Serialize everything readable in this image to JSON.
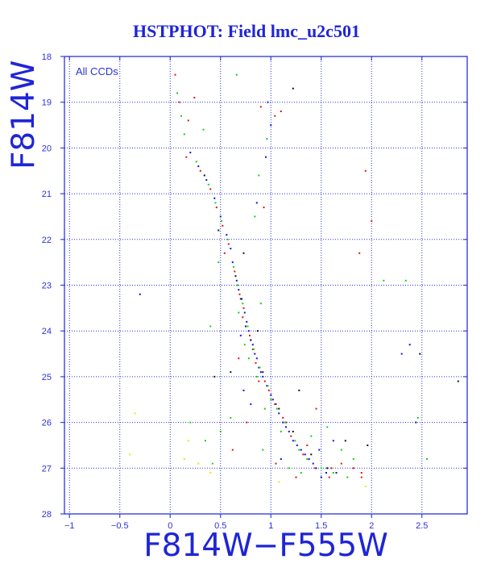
{
  "chart_data": {
    "type": "scatter",
    "title": "HSTPHOT: Field lmc_u2c501",
    "xlabel": "F814W−F555W",
    "ylabel": "F814W",
    "annotation": "All CCDs",
    "xlim": [
      -1.05,
      2.95
    ],
    "ylim": [
      28,
      18
    ],
    "y_inverted": true,
    "grid": true,
    "x_ticks": [
      -1,
      -0.5,
      0,
      0.5,
      1,
      1.5,
      2,
      2.5
    ],
    "x_tick_labels": [
      "−1",
      "−0.5",
      "0",
      "0.5",
      "1",
      "1.5",
      "2",
      "2.5"
    ],
    "y_ticks": [
      18,
      19,
      20,
      21,
      22,
      23,
      24,
      25,
      26,
      27,
      28
    ],
    "y_tick_labels": [
      "18",
      "19",
      "20",
      "21",
      "22",
      "23",
      "24",
      "25",
      "26",
      "27",
      "28"
    ],
    "colors": {
      "axis": "#2b32d8",
      "title": "#1f25d6",
      "background": "#ffffff"
    },
    "series_colors": [
      "#1111e0",
      "#e01111",
      "#11d011",
      "#111111",
      "#e8e800"
    ],
    "series": [
      {
        "color": "#1111e0",
        "points": [
          [
            0.62,
            22.5
          ],
          [
            0.66,
            22.9
          ],
          [
            0.7,
            23.3
          ],
          [
            0.74,
            23.6
          ],
          [
            0.78,
            24.0
          ],
          [
            0.82,
            24.3
          ],
          [
            0.86,
            24.6
          ],
          [
            0.9,
            24.9
          ],
          [
            0.96,
            25.2
          ],
          [
            1.02,
            25.5
          ],
          [
            1.08,
            25.8
          ],
          [
            1.15,
            26.1
          ],
          [
            1.22,
            26.4
          ],
          [
            1.3,
            26.6
          ],
          [
            1.38,
            26.8
          ],
          [
            1.45,
            27.0
          ],
          [
            1.55,
            27.1
          ],
          [
            1.65,
            27.1
          ],
          [
            0.6,
            22.2
          ],
          [
            0.68,
            23.1
          ],
          [
            0.76,
            23.8
          ],
          [
            0.84,
            24.5
          ],
          [
            0.92,
            25.0
          ],
          [
            1.0,
            25.4
          ],
          [
            1.12,
            26.0
          ],
          [
            1.26,
            26.5
          ],
          [
            1.42,
            26.9
          ],
          [
            1.5,
            27.2
          ],
          [
            0.56,
            21.9
          ],
          [
            0.5,
            21.5
          ],
          [
            0.44,
            21.1
          ],
          [
            0.36,
            20.7
          ],
          [
            0.28,
            20.4
          ],
          [
            0.2,
            20.1
          ],
          [
            0.86,
            21.2
          ],
          [
            0.95,
            20.2
          ],
          [
            1.0,
            19.5
          ],
          [
            0.97,
            19.0
          ],
          [
            0.73,
            25.3
          ],
          [
            0.8,
            25.6
          ],
          [
            1.62,
            26.4
          ],
          [
            1.1,
            26.8
          ],
          [
            2.38,
            24.3
          ],
          [
            2.3,
            24.5
          ],
          [
            2.44,
            26.0
          ],
          [
            -0.3,
            23.2
          ],
          [
            0.7,
            24.1
          ],
          [
            0.75,
            23.9
          ],
          [
            0.8,
            24.2
          ],
          [
            0.88,
            24.8
          ],
          [
            1.05,
            25.6
          ],
          [
            1.18,
            26.2
          ],
          [
            1.34,
            26.7
          ],
          [
            1.48,
            26.6
          ]
        ]
      },
      {
        "color": "#e01111",
        "points": [
          [
            0.64,
            22.7
          ],
          [
            0.69,
            23.2
          ],
          [
            0.73,
            23.5
          ],
          [
            0.79,
            24.1
          ],
          [
            0.85,
            24.7
          ],
          [
            0.94,
            25.1
          ],
          [
            1.04,
            25.6
          ],
          [
            1.12,
            25.9
          ],
          [
            1.2,
            26.3
          ],
          [
            1.32,
            26.7
          ],
          [
            1.44,
            27.0
          ],
          [
            1.58,
            27.2
          ],
          [
            1.7,
            26.9
          ],
          [
            1.82,
            27.0
          ],
          [
            1.9,
            27.1
          ],
          [
            0.58,
            22.1
          ],
          [
            0.52,
            21.7
          ],
          [
            0.46,
            21.3
          ],
          [
            0.4,
            20.9
          ],
          [
            0.3,
            20.5
          ],
          [
            0.16,
            20.2
          ],
          [
            0.09,
            19.0
          ],
          [
            0.24,
            18.9
          ],
          [
            0.18,
            19.4
          ],
          [
            1.04,
            19.3
          ],
          [
            1.1,
            19.2
          ],
          [
            0.9,
            19.1
          ],
          [
            0.93,
            21.3
          ],
          [
            1.88,
            22.3
          ],
          [
            1.9,
            27.2
          ],
          [
            1.94,
            20.5
          ],
          [
            2.0,
            21.6
          ],
          [
            0.76,
            26.0
          ],
          [
            0.62,
            26.6
          ],
          [
            1.05,
            26.9
          ],
          [
            1.25,
            27.2
          ],
          [
            0.72,
            23.7
          ],
          [
            0.82,
            24.4
          ],
          [
            0.98,
            25.3
          ],
          [
            1.15,
            26.0
          ],
          [
            1.36,
            26.5
          ],
          [
            0.05,
            18.4
          ],
          [
            0.88,
            25.1
          ],
          [
            1.45,
            25.7
          ],
          [
            0.68,
            24.6
          ],
          [
            1.6,
            27.0
          ],
          [
            0.54,
            22.3
          ]
        ]
      },
      {
        "color": "#11d011",
        "points": [
          [
            0.63,
            22.6
          ],
          [
            0.67,
            23.0
          ],
          [
            0.72,
            23.4
          ],
          [
            0.77,
            23.9
          ],
          [
            0.83,
            24.4
          ],
          [
            0.89,
            24.8
          ],
          [
            0.97,
            25.2
          ],
          [
            1.06,
            25.7
          ],
          [
            1.14,
            26.0
          ],
          [
            1.24,
            26.4
          ],
          [
            1.36,
            26.8
          ],
          [
            1.5,
            27.0
          ],
          [
            1.62,
            27.1
          ],
          [
            1.76,
            27.2
          ],
          [
            0.57,
            22.0
          ],
          [
            0.51,
            21.6
          ],
          [
            0.45,
            21.2
          ],
          [
            0.38,
            20.8
          ],
          [
            0.26,
            20.3
          ],
          [
            0.14,
            19.7
          ],
          [
            0.07,
            18.8
          ],
          [
            0.11,
            19.3
          ],
          [
            0.66,
            18.4
          ],
          [
            0.33,
            19.6
          ],
          [
            0.96,
            19.8
          ],
          [
            0.88,
            20.6
          ],
          [
            0.84,
            21.5
          ],
          [
            0.6,
            25.9
          ],
          [
            0.5,
            26.2
          ],
          [
            0.42,
            26.9
          ],
          [
            0.35,
            26.4
          ],
          [
            0.92,
            26.6
          ],
          [
            1.18,
            27.0
          ],
          [
            1.3,
            27.1
          ],
          [
            1.4,
            26.3
          ],
          [
            1.7,
            26.6
          ],
          [
            1.82,
            26.8
          ],
          [
            2.12,
            22.9
          ],
          [
            2.34,
            22.9
          ],
          [
            2.55,
            26.8
          ],
          [
            2.46,
            25.9
          ],
          [
            0.2,
            26.0
          ],
          [
            0.74,
            24.3
          ],
          [
            0.86,
            25.0
          ],
          [
            1.0,
            25.5
          ],
          [
            1.1,
            26.2
          ],
          [
            1.28,
            26.6
          ],
          [
            0.68,
            23.6
          ],
          [
            0.78,
            24.6
          ],
          [
            0.94,
            25.7
          ],
          [
            0.9,
            23.4
          ],
          [
            1.56,
            26.1
          ],
          [
            0.48,
            22.5
          ],
          [
            0.4,
            23.9
          ]
        ]
      },
      {
        "color": "#111111",
        "points": [
          [
            0.65,
            22.8
          ],
          [
            0.71,
            23.3
          ],
          [
            0.8,
            24.2
          ],
          [
            0.92,
            24.9
          ],
          [
            1.08,
            25.7
          ],
          [
            1.22,
            26.2
          ],
          [
            1.4,
            26.7
          ],
          [
            1.56,
            27.0
          ],
          [
            0.48,
            21.8
          ],
          [
            0.34,
            20.6
          ],
          [
            1.22,
            18.7
          ],
          [
            2.86,
            25.1
          ],
          [
            2.48,
            24.5
          ],
          [
            1.96,
            26.5
          ],
          [
            1.74,
            26.4
          ],
          [
            0.44,
            25.0
          ],
          [
            1.28,
            25.3
          ],
          [
            0.6,
            24.9
          ],
          [
            0.73,
            22.3
          ],
          [
            0.87,
            24.0
          ]
        ]
      },
      {
        "color": "#e8e800",
        "points": [
          [
            0.18,
            26.4
          ],
          [
            0.28,
            26.9
          ],
          [
            -0.4,
            26.7
          ],
          [
            -0.35,
            25.8
          ],
          [
            1.94,
            27.4
          ],
          [
            0.4,
            27.1
          ],
          [
            1.08,
            27.3
          ],
          [
            0.14,
            26.8
          ]
        ]
      }
    ]
  }
}
